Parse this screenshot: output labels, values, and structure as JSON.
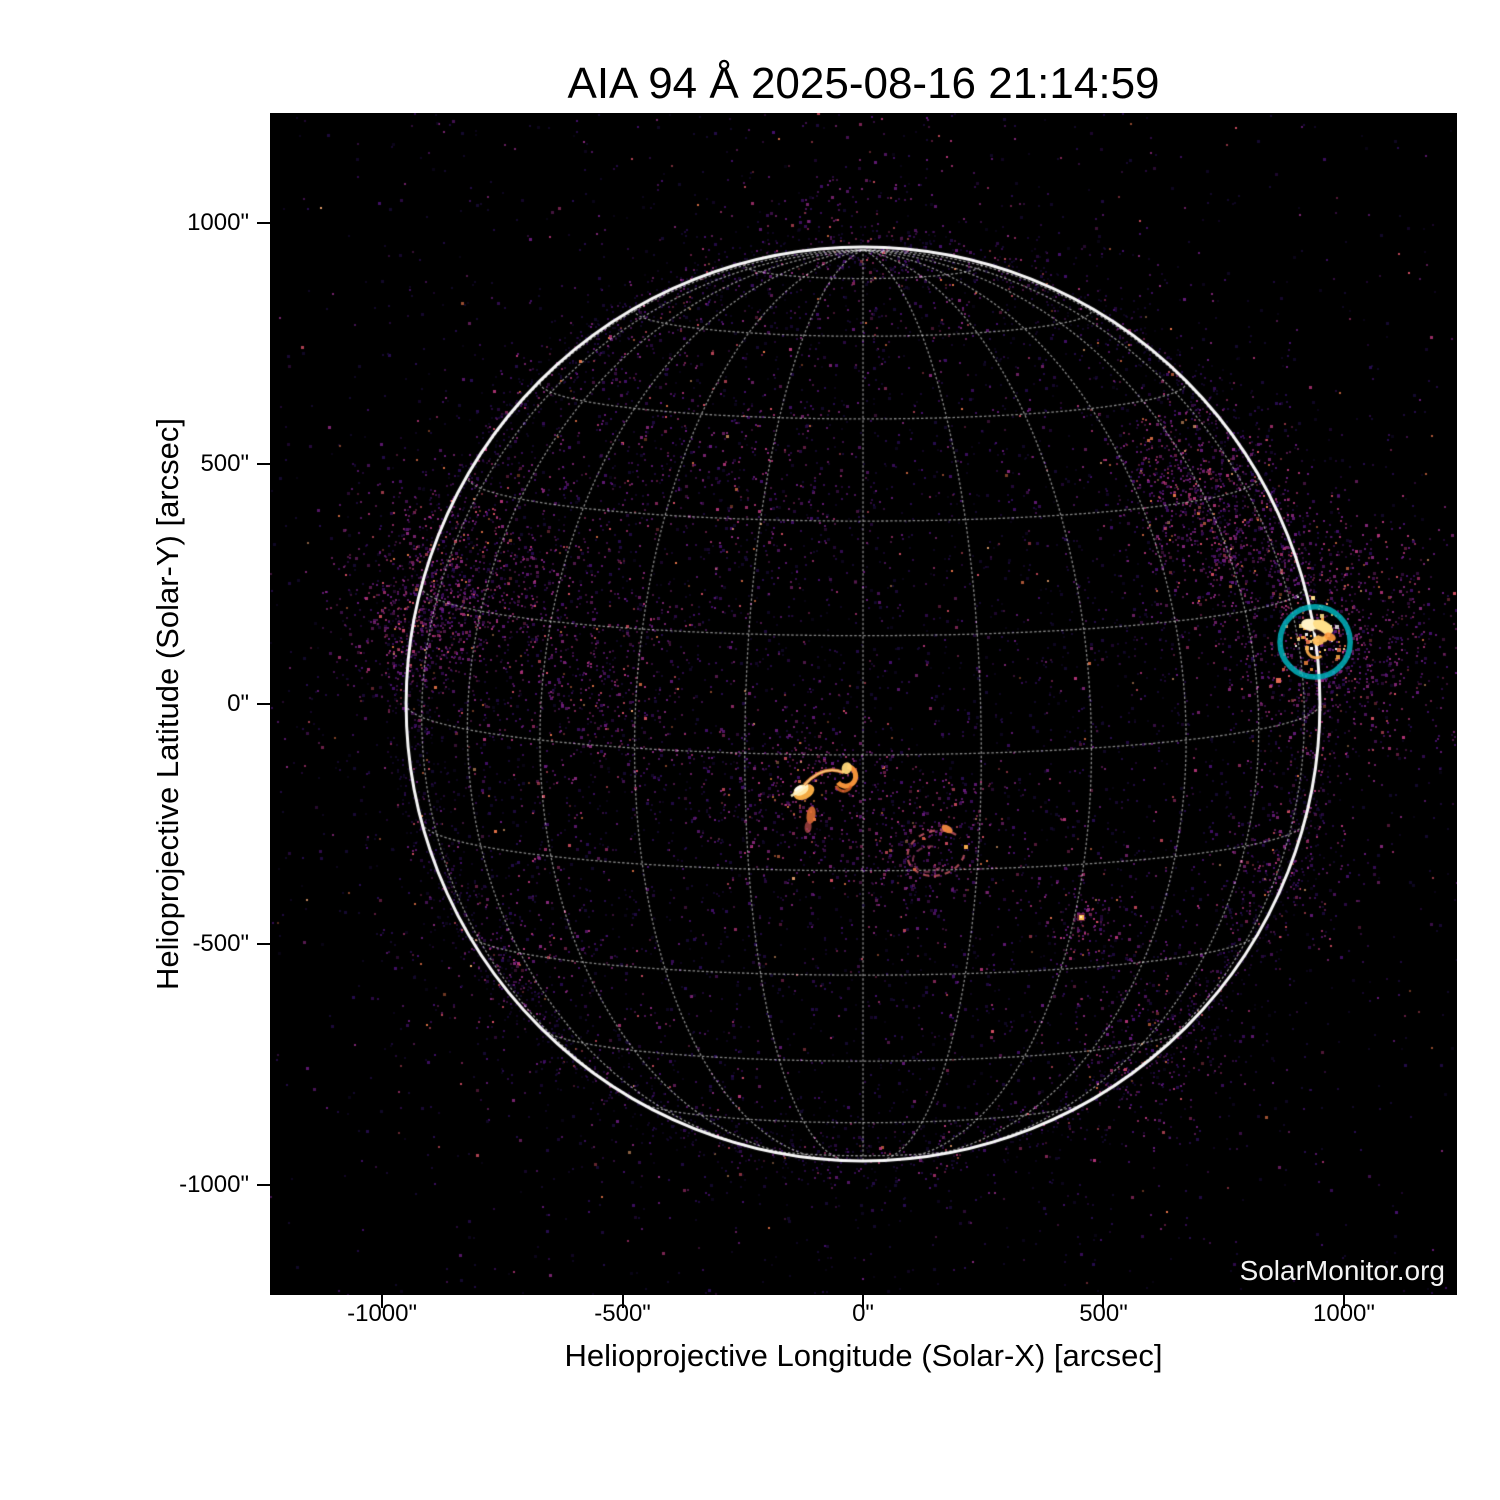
{
  "figure": {
    "background": "#ffffff",
    "plot_background": "#000000",
    "text_color": "#000000"
  },
  "chart_data": {
    "type": "heatmap",
    "title": "AIA 94 Å 2025-08-16 21:14:59",
    "xlabel": "Helioprojective Longitude (Solar-X) [arcsec]",
    "ylabel": "Helioprojective Latitude (Solar-Y) [arcsec]",
    "watermark": "SolarMonitor.org",
    "instrument": "AIA",
    "wavelength": "94 Å",
    "datetime": "2025-08-16 21:14:59",
    "xlim": [
      -1233,
      1235
    ],
    "ylim": [
      -1229,
      1229
    ],
    "xticks": {
      "values": [
        -1000,
        -500,
        0,
        500,
        1000
      ],
      "labels": [
        "-1000\"",
        "-500\"",
        "0\"",
        "500\"",
        "1000\""
      ]
    },
    "yticks": {
      "values": [
        1000,
        500,
        0,
        -500,
        -1000
      ],
      "labels": [
        "1000\"",
        "500\"",
        "0\"",
        "-500\"",
        "-1000\""
      ]
    },
    "grid": {
      "on": true,
      "system": "heliographic",
      "spacing_deg": 15,
      "b0_deg": 6.4,
      "color": "#ffffff"
    },
    "solar_limb": {
      "center_arcsec": [
        0,
        0
      ],
      "radius_arcsec": 950,
      "color": "#ffffff"
    },
    "colormap": "black-purple-magenta-orange-yellow-white",
    "noise_palette": [
      "#160a33",
      "#2a0d56",
      "#471070",
      "#6a1b7f",
      "#8c2981",
      "#b7357b",
      "#de5268",
      "#f27a4d",
      "#feb078"
    ],
    "features": [
      {
        "name": "flare-kernel",
        "type": "kernel",
        "x": -131,
        "y": -179,
        "color": "#fffdf0"
      },
      {
        "name": "flare-ribbon-arc",
        "type": "arc",
        "x1": -122,
        "y1": -168,
        "x2": -40,
        "y2": -143,
        "color": "#e8833f"
      },
      {
        "name": "flare-hook",
        "type": "hook",
        "x": -36,
        "y": -150,
        "color": "#ff9a3c"
      },
      {
        "name": "flare-tail",
        "type": "blob",
        "x": -108,
        "y": -231,
        "color": "#e87336"
      },
      {
        "name": "post-flare-loops",
        "type": "loop-ring",
        "x": 152,
        "y": -310,
        "radius": 62,
        "color": "#c85765"
      },
      {
        "name": "bright-point",
        "type": "dot",
        "x": 455,
        "y": -445,
        "color": "#ffc050"
      },
      {
        "name": "limb-active-region",
        "type": "cluster",
        "x": 944,
        "y": 148,
        "radius": 55,
        "colors": [
          "#ffffff",
          "#ffe08a",
          "#ffab45",
          "#f27a4d"
        ]
      }
    ],
    "noise_patches": [
      {
        "x": -838,
        "y": 268,
        "sigma": 115,
        "n": 700
      },
      {
        "x": -921,
        "y": 148,
        "sigma": 80,
        "n": 350
      },
      {
        "x": -547,
        "y": 50,
        "sigma": 125,
        "n": 450
      },
      {
        "x": -464,
        "y": 570,
        "sigma": 150,
        "n": 250
      },
      {
        "x": 753,
        "y": 383,
        "sigma": 90,
        "n": 550
      },
      {
        "x": 649,
        "y": 487,
        "sigma": 80,
        "n": 250
      },
      {
        "x": 946,
        "y": 150,
        "sigma": 120,
        "n": 650
      },
      {
        "x": 1075,
        "y": 123,
        "sigma": 130,
        "n": 300
      },
      {
        "x": -131,
        "y": -179,
        "sigma": 110,
        "n": 400
      },
      {
        "x": 150,
        "y": -308,
        "sigma": 90,
        "n": 300
      },
      {
        "x": 455,
        "y": -445,
        "sigma": 50,
        "n": 120
      },
      {
        "x": 597,
        "y": -726,
        "sigma": 110,
        "n": 220
      },
      {
        "x": -713,
        "y": -511,
        "sigma": 110,
        "n": 200
      },
      {
        "x": 0,
        "y": 944,
        "sigma": 150,
        "n": 250
      },
      {
        "x": 860,
        "y": -330,
        "sigma": 90,
        "n": 180
      },
      {
        "x": -180,
        "y": 430,
        "sigma": 120,
        "n": 180
      }
    ],
    "annotations": [
      {
        "name": "flare-location-circle",
        "shape": "circle",
        "x_arcsec": 940,
        "y_arcsec": 129,
        "radius_arcsec": 73,
        "color": "#00bdc7",
        "stroke_width": 5.5
      }
    ]
  }
}
